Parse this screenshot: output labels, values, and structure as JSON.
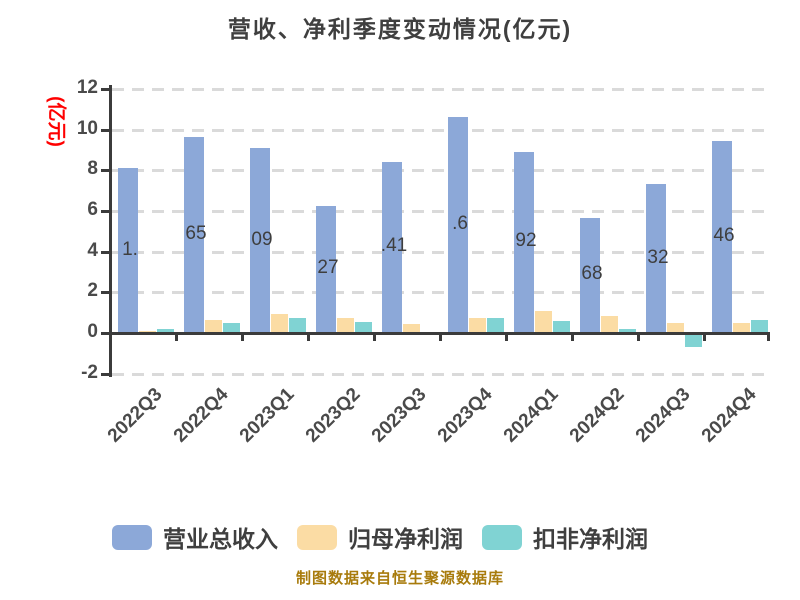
{
  "footer": {
    "text": "制图数据来自恒生聚源数据库"
  },
  "chart_data": {
    "type": "bar",
    "title": "营收、净利季度变动情况(亿元)",
    "ylabel": "(亿元)",
    "ylabel_color": "#ff0000",
    "ylim": [
      -2,
      12
    ],
    "ytick_step": 2,
    "ytick_labels": [
      "12",
      "10",
      "8",
      "6",
      "4",
      "2",
      "0",
      "-2"
    ],
    "grid": "dashed-horizontal",
    "legend_position": "bottom",
    "categories": [
      "2022Q3",
      "2022Q4",
      "2023Q1",
      "2023Q2",
      "2023Q3",
      "2023Q4",
      "2024Q1",
      "2024Q2",
      "2024Q3",
      "2024Q4"
    ],
    "series": [
      {
        "name": "营业总收入",
        "key": "revenue",
        "color": "#8ca8d8",
        "values": [
          8.11,
          9.65,
          9.09,
          6.27,
          8.41,
          10.62,
          8.92,
          5.68,
          7.32,
          9.46
        ]
      },
      {
        "name": "归母净利润",
        "key": "net-profit",
        "color": "#fbdca4",
        "values": [
          0.1,
          0.64,
          0.93,
          0.75,
          0.45,
          0.74,
          1.1,
          0.85,
          0.5,
          0.5
        ]
      },
      {
        "name": "扣非净利润",
        "key": "deducted-net-profit",
        "color": "#80d3d3",
        "values": [
          0.2,
          0.5,
          0.72,
          0.55,
          0.05,
          0.74,
          0.6,
          0.18,
          -0.57,
          0.64
        ]
      }
    ],
    "bar_label_fragments": [
      "1.",
      "65",
      "09",
      "27",
      ".41",
      ".6",
      "92",
      "68",
      "32",
      "46"
    ],
    "colors": {
      "axis": "#3b3b3b",
      "grid": "#dadada",
      "tick_text": "#4a4a4a",
      "title_text": "#3f3f3f",
      "footer_text": "#a87b0c"
    }
  }
}
